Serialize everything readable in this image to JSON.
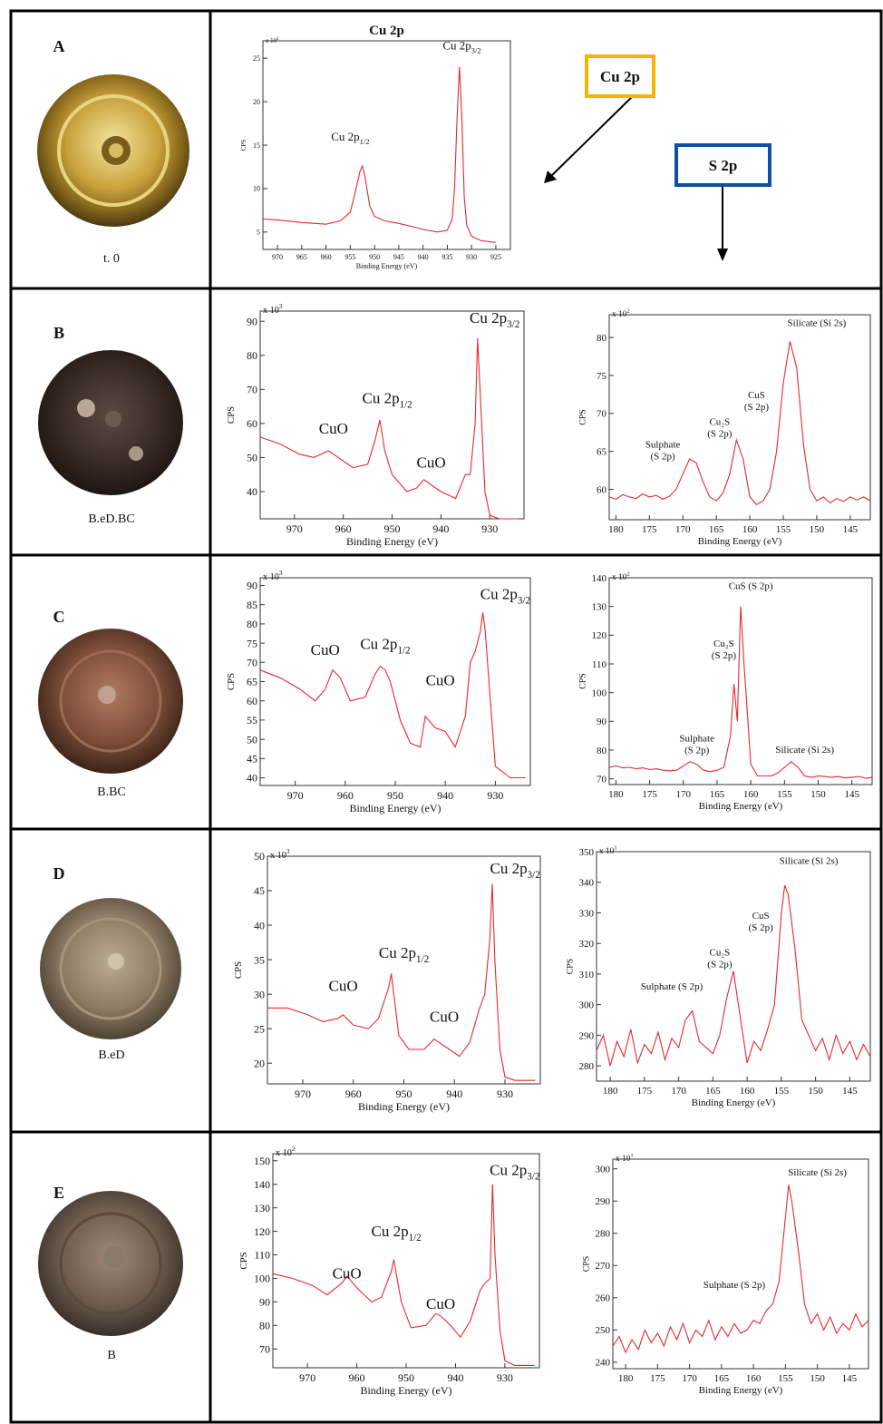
{
  "samples": [
    {
      "letter": "A",
      "caption": "t. 0"
    },
    {
      "letter": "B",
      "caption": "B.eD.BC"
    },
    {
      "letter": "C",
      "caption": "B.BC"
    },
    {
      "letter": "D",
      "caption": "B.eD"
    },
    {
      "letter": "E",
      "caption": "B"
    }
  ],
  "legend_boxes": [
    {
      "text": "Cu 2p",
      "color": "#f5b400"
    },
    {
      "text": "S 2p",
      "color": "#0b4fa8"
    }
  ],
  "chart_data": [
    {
      "type": "line",
      "title": "Cu 2p",
      "ylabel": "CPS",
      "xlabel": "Binding Energy (eV)",
      "multiplier": "x 10",
      "multiplier_exp": "4",
      "color": "#e8282c",
      "xlim": [
        973,
        922
      ],
      "ylim": [
        3,
        27
      ],
      "xticks": [
        970,
        965,
        960,
        955,
        950,
        945,
        940,
        935,
        930,
        925
      ],
      "yticks": [
        5,
        10,
        15,
        20,
        25
      ],
      "x": [
        973,
        970,
        965,
        960,
        957,
        955,
        954,
        953,
        952.5,
        952,
        951,
        950,
        948,
        945,
        942,
        940,
        937,
        935,
        934,
        933.5,
        933,
        932.5,
        932,
        931.5,
        931,
        930,
        928,
        925
      ],
      "values": [
        6.5,
        6.4,
        6.1,
        5.9,
        6.3,
        7.3,
        9.5,
        12,
        12.6,
        11.5,
        8,
        6.8,
        6.3,
        6.0,
        5.6,
        5.3,
        5.0,
        5.2,
        6.5,
        10,
        18,
        24,
        18,
        9,
        5.8,
        4.5,
        4.0,
        3.8
      ],
      "annotations": [
        {
          "text": "Cu 2p",
          "sub": "1/2",
          "x": 955,
          "y": 15.5
        },
        {
          "text": "Cu 2p",
          "sub": "3/2",
          "x": 932,
          "y": 26
        }
      ]
    },
    {
      "type": "line",
      "ylabel": "CPS",
      "xlabel": "Binding Energy (eV)",
      "multiplier": "x 10",
      "multiplier_exp": "3",
      "color": "#e8282c",
      "xlim": [
        977,
        923
      ],
      "ylim": [
        32,
        93
      ],
      "xticks": [
        970,
        960,
        950,
        940,
        930
      ],
      "yticks": [
        40,
        50,
        60,
        70,
        80,
        90
      ],
      "x": [
        977,
        973,
        969,
        966,
        963,
        961,
        958,
        955,
        953.5,
        952.5,
        951.5,
        950,
        947,
        945,
        943.5,
        942,
        940,
        937,
        935,
        934,
        933,
        932.5,
        932,
        931,
        930,
        928,
        924
      ],
      "values": [
        56,
        54,
        51,
        50,
        52,
        50,
        47,
        48,
        55,
        61,
        52,
        45,
        40,
        41,
        43.5,
        42,
        40,
        38,
        45,
        45,
        60,
        85,
        70,
        40,
        33,
        32,
        32
      ],
      "annotations": [
        {
          "text": "Cu 2p",
          "sub": "3/2",
          "x": 929,
          "y": 89.5
        },
        {
          "text": "Cu 2p",
          "sub": "1/2",
          "x": 951,
          "y": 66
        },
        {
          "text": "CuO",
          "x": 962,
          "y": 57
        },
        {
          "text": "CuO",
          "x": 942,
          "y": 47
        }
      ]
    },
    {
      "type": "line",
      "ylabel": "CPS",
      "xlabel": "Binding Energy (eV)",
      "multiplier": "x 10",
      "multiplier_exp": "2",
      "color": "#e8282c",
      "xlim": [
        181,
        142
      ],
      "ylim": [
        56,
        83
      ],
      "xticks": [
        180,
        175,
        170,
        165,
        160,
        155,
        150,
        145
      ],
      "yticks": [
        60,
        65,
        70,
        75,
        80
      ],
      "x": [
        181,
        180,
        179,
        178,
        177,
        176,
        175,
        174,
        173,
        172,
        171,
        170,
        169,
        168,
        167,
        166,
        165,
        164,
        163,
        162,
        161,
        160,
        159,
        158,
        157,
        156,
        155,
        154,
        153,
        152,
        151,
        150,
        149,
        148,
        147,
        146,
        145,
        144,
        143,
        142
      ],
      "values": [
        59,
        58.7,
        59.3,
        59,
        58.8,
        59.4,
        59,
        59.2,
        58.7,
        59.1,
        60,
        62,
        64,
        63.5,
        61,
        59,
        58.5,
        59.5,
        62,
        66.5,
        64,
        59,
        58,
        58.5,
        60,
        65,
        74,
        79.5,
        76,
        66,
        60,
        58.5,
        59,
        58.2,
        58.8,
        58.4,
        59,
        58.6,
        59,
        58.5
      ],
      "annotations": [
        {
          "lines": [
            "Silicate (Si 2s)"
          ],
          "x": 150,
          "y": 81.5
        },
        {
          "lines": [
            "CuS",
            "(S 2p)"
          ],
          "x": 159,
          "y": 72
        },
        {
          "lines": [
            "Cu₂S",
            "(S 2p)"
          ],
          "x": 164.5,
          "y": 68.5
        },
        {
          "lines": [
            "Sulphate",
            "(S 2p)"
          ],
          "x": 173,
          "y": 65.5
        }
      ]
    },
    {
      "type": "line",
      "ylabel": "CPS",
      "xlabel": "Binding Energy (eV)",
      "multiplier": "x 10",
      "multiplier_exp": "3",
      "color": "#e8282c",
      "xlim": [
        977,
        923
      ],
      "ylim": [
        38,
        92
      ],
      "xticks": [
        970,
        960,
        950,
        940,
        930
      ],
      "yticks": [
        40,
        45,
        50,
        55,
        60,
        65,
        70,
        75,
        80,
        85,
        90
      ],
      "x": [
        977,
        973,
        969,
        966,
        964,
        962.5,
        961,
        959,
        956,
        954,
        953,
        952,
        951,
        949,
        947,
        945,
        944,
        942,
        940,
        938,
        936,
        935,
        934,
        933,
        932.5,
        932,
        931,
        930,
        927,
        924
      ],
      "values": [
        68,
        66,
        63,
        60,
        63,
        68,
        66,
        60,
        61,
        67,
        69,
        68,
        65,
        55,
        49,
        48,
        56,
        53,
        52,
        48,
        56,
        70,
        73,
        78,
        83,
        78,
        60,
        43,
        40,
        40
      ],
      "annotations": [
        {
          "text": "Cu 2p",
          "sub": "3/2",
          "x": 928,
          "y": 86.5
        },
        {
          "text": "Cu 2p",
          "sub": "1/2",
          "x": 952,
          "y": 73.5
        },
        {
          "text": "CuO",
          "x": 964,
          "y": 72
        },
        {
          "text": "CuO",
          "x": 941,
          "y": 64
        }
      ]
    },
    {
      "type": "line",
      "ylabel": "CPS",
      "xlabel": "Binding Energy (eV)",
      "multiplier": "x 10",
      "multiplier_exp": "2",
      "color": "#e8282c",
      "xlim": [
        181,
        142
      ],
      "ylim": [
        68,
        140
      ],
      "xticks": [
        180,
        175,
        170,
        165,
        160,
        155,
        150,
        145
      ],
      "yticks": [
        70,
        80,
        90,
        100,
        110,
        120,
        130,
        140
      ],
      "x": [
        181,
        180,
        179,
        178,
        177,
        176,
        175,
        174,
        173,
        172,
        171,
        170,
        169,
        168,
        167,
        166,
        165,
        164,
        163,
        162.5,
        162,
        161.5,
        161,
        160,
        159,
        158,
        157,
        156,
        155,
        154,
        153,
        152,
        151,
        150,
        149,
        148,
        147,
        146,
        145,
        144,
        143,
        142
      ],
      "values": [
        74,
        74.5,
        73.8,
        74,
        73.5,
        73.8,
        73.2,
        73.5,
        73,
        72.8,
        73,
        74.5,
        76,
        75,
        73,
        72.5,
        73,
        74,
        85,
        103,
        90,
        130,
        110,
        75,
        71,
        71,
        71,
        72,
        74,
        76,
        74,
        71,
        70.5,
        71,
        70.8,
        70.5,
        70.8,
        70.3,
        70.5,
        70.8,
        70.2,
        70.5
      ],
      "annotations": [
        {
          "lines": [
            "CuS (S 2p)"
          ],
          "x": 160,
          "y": 136
        },
        {
          "lines": [
            "Cu₂S",
            "(S 2p)"
          ],
          "x": 164,
          "y": 116
        },
        {
          "lines": [
            "Sulphate",
            "(S 2p)"
          ],
          "x": 168,
          "y": 83
        },
        {
          "lines": [
            "Silicate (Si 2s)"
          ],
          "x": 152,
          "y": 79
        }
      ]
    },
    {
      "type": "line",
      "ylabel": "CPS",
      "xlabel": "Binding Energy (eV)",
      "multiplier": "x 10",
      "multiplier_exp": "3",
      "color": "#e8282c",
      "xlim": [
        977,
        923
      ],
      "ylim": [
        17,
        50
      ],
      "xticks": [
        970,
        960,
        950,
        940,
        930
      ],
      "yticks": [
        20,
        25,
        30,
        35,
        40,
        45,
        50
      ],
      "x": [
        977,
        973,
        969,
        966,
        963,
        962,
        960,
        957,
        955,
        953,
        952.5,
        952,
        951,
        949,
        946,
        944,
        943,
        941,
        939,
        937,
        935,
        934,
        933,
        932.5,
        932,
        931,
        930,
        928,
        924
      ],
      "values": [
        28,
        28,
        27,
        26,
        26.5,
        27,
        25.5,
        25,
        26.5,
        31,
        33,
        30,
        24,
        22,
        22,
        23.5,
        23,
        22,
        21,
        23,
        28,
        30,
        38,
        46,
        35,
        22,
        18,
        17.5,
        17.5
      ],
      "annotations": [
        {
          "text": "Cu 2p",
          "sub": "3/2",
          "x": 928,
          "y": 47.5
        },
        {
          "text": "Cu 2p",
          "sub": "1/2",
          "x": 950,
          "y": 35.3
        },
        {
          "text": "CuO",
          "x": 962,
          "y": 30.5
        },
        {
          "text": "CuO",
          "x": 942,
          "y": 26
        }
      ]
    },
    {
      "type": "line",
      "ylabel": "CPS",
      "xlabel": "Binding Energy (eV)",
      "multiplier": "x 10",
      "multiplier_exp": "1",
      "color": "#e8282c",
      "xlim": [
        182,
        142
      ],
      "ylim": [
        275,
        350
      ],
      "xticks": [
        180,
        175,
        170,
        165,
        160,
        155,
        150,
        145
      ],
      "yticks": [
        280,
        290,
        300,
        310,
        320,
        330,
        340,
        350
      ],
      "x": [
        182,
        181,
        180,
        179,
        178,
        177,
        176,
        175,
        174,
        173,
        172,
        171,
        170,
        169,
        168,
        167,
        166,
        165,
        164,
        163,
        162,
        161,
        160,
        159,
        158,
        157,
        156,
        155,
        154.5,
        154,
        153,
        152,
        151,
        150,
        149,
        148,
        147,
        146,
        145,
        144,
        143,
        142
      ],
      "values": [
        285,
        290,
        280,
        288,
        283,
        292,
        281,
        287,
        284,
        291,
        282,
        289,
        286,
        295,
        298,
        288,
        286,
        284,
        290,
        302,
        311,
        296,
        281,
        288,
        285,
        292,
        300,
        330,
        339,
        336,
        318,
        295,
        290,
        285,
        289,
        282,
        290,
        284,
        288,
        282,
        287,
        283
      ],
      "annotations": [
        {
          "lines": [
            "Silicate (Si 2s)"
          ],
          "x": 151,
          "y": 346
        },
        {
          "lines": [
            "CuS",
            "(S 2p)"
          ],
          "x": 158,
          "y": 328
        },
        {
          "lines": [
            "Cu₂S",
            "(S 2p)"
          ],
          "x": 164,
          "y": 316
        },
        {
          "lines": [
            "Sulphate (S 2p)"
          ],
          "x": 171,
          "y": 305
        }
      ]
    },
    {
      "type": "line",
      "ylabel": "CPS",
      "xlabel": "Binding Energy (eV)",
      "multiplier": "x 10",
      "multiplier_exp": "2",
      "color": "#e8282c",
      "xlim": [
        977,
        923
      ],
      "ylim": [
        62,
        153
      ],
      "xticks": [
        970,
        960,
        950,
        940,
        930
      ],
      "yticks": [
        70,
        80,
        90,
        100,
        110,
        120,
        130,
        140,
        150
      ],
      "x": [
        977,
        973,
        969,
        966,
        963,
        962,
        960,
        957,
        955,
        953,
        952.5,
        952,
        951,
        949,
        946,
        944,
        943,
        941,
        939,
        937,
        935,
        934,
        933,
        932.5,
        932,
        931,
        930,
        928,
        924
      ],
      "values": [
        102,
        100,
        97,
        93,
        98,
        101,
        96,
        90,
        92,
        103,
        108,
        102,
        90,
        79,
        80,
        85,
        84,
        80,
        75,
        82,
        95,
        98,
        100,
        140,
        110,
        78,
        65,
        63,
        63
      ],
      "annotations": [
        {
          "text": "Cu 2p",
          "sub": "3/2",
          "x": 928,
          "y": 144
        },
        {
          "text": "Cu 2p",
          "sub": "1/2",
          "x": 952,
          "y": 118
        },
        {
          "text": "CuO",
          "x": 962,
          "y": 100
        },
        {
          "text": "CuO",
          "x": 943,
          "y": 87
        }
      ]
    },
    {
      "type": "line",
      "ylabel": "CPS",
      "xlabel": "Binding Energy (eV)",
      "multiplier": "x 10",
      "multiplier_exp": "1",
      "color": "#e8282c",
      "xlim": [
        182,
        142
      ],
      "ylim": [
        238,
        303
      ],
      "xticks": [
        180,
        175,
        170,
        165,
        160,
        155,
        150,
        145
      ],
      "yticks": [
        240,
        250,
        260,
        270,
        280,
        290,
        300
      ],
      "x": [
        182,
        181,
        180,
        179,
        178,
        177,
        176,
        175,
        174,
        173,
        172,
        171,
        170,
        169,
        168,
        167,
        166,
        165,
        164,
        163,
        162,
        161,
        160,
        159,
        158,
        157,
        156,
        155,
        154.5,
        154,
        153,
        152,
        151,
        150,
        149,
        148,
        147,
        146,
        145,
        144,
        143,
        142
      ],
      "values": [
        245,
        248,
        243,
        247,
        244,
        250,
        246,
        249,
        245,
        251,
        247,
        252,
        246,
        250,
        248,
        253,
        247,
        251,
        248,
        252,
        249,
        250,
        253,
        252,
        256,
        258,
        265,
        285,
        295,
        290,
        275,
        258,
        252,
        255,
        250,
        254,
        249,
        252,
        250,
        255,
        251,
        253
      ],
      "annotations": [
        {
          "lines": [
            "Silicate (Si 2s)"
          ],
          "x": 150,
          "y": 298
        },
        {
          "lines": [
            "Sulphate (S 2p)"
          ],
          "x": 163,
          "y": 263
        }
      ]
    }
  ]
}
